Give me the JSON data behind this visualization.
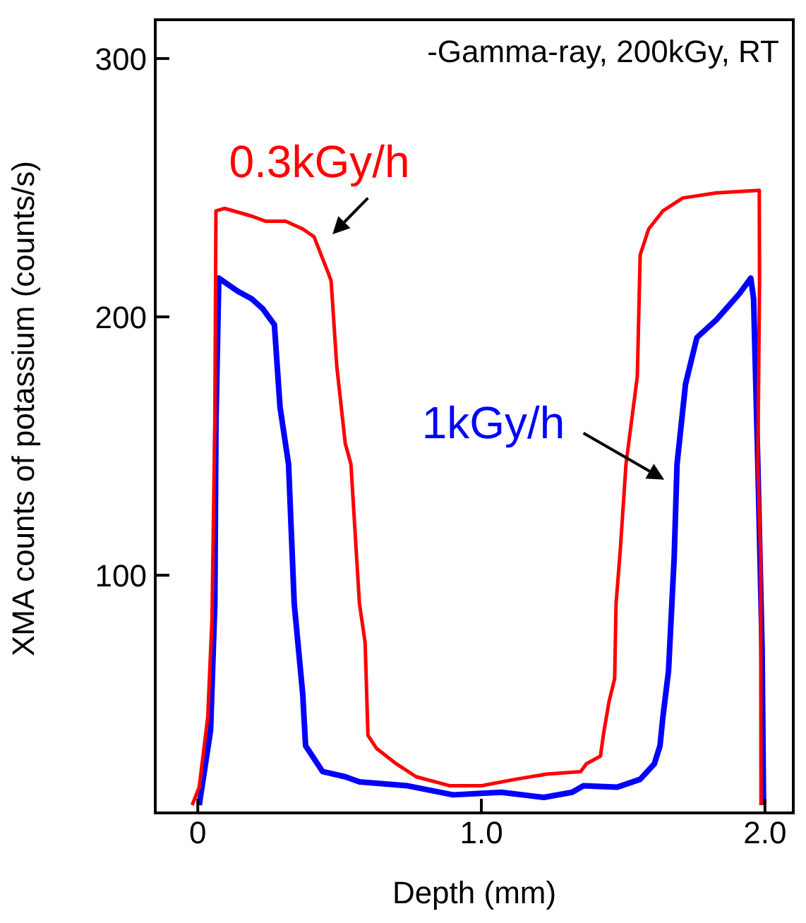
{
  "chart_data": {
    "type": "line",
    "xlabel": "Depth (mm)",
    "ylabel": "XMA counts of potassium (counts/s)",
    "annotations": [
      "-Gamma-ray, 200kGy, RT"
    ],
    "xlim": [
      -0.15,
      2.1
    ],
    "xticks": [
      0,
      {
        "value": 1,
        "label": "1.0"
      },
      {
        "value": 2,
        "label": "2.0"
      }
    ],
    "ylim": [
      8,
      315
    ],
    "yticks": [
      100,
      200,
      300
    ],
    "marker": "none",
    "line_style": "solid",
    "series": [
      {
        "name": "0.3kGy/h",
        "color": "#ff0000",
        "x": [
          -0.02,
          0.005,
          0.035,
          0.05,
          0.06,
          0.064,
          0.094,
          0.19,
          0.24,
          0.31,
          0.37,
          0.41,
          0.46,
          0.47,
          0.49,
          0.52,
          0.54,
          0.57,
          0.59,
          0.6,
          0.63,
          0.7,
          0.77,
          0.89,
          1.0,
          1.12,
          1.23,
          1.35,
          1.37,
          1.42,
          1.43,
          1.45,
          1.47,
          1.475,
          1.49,
          1.51,
          1.55,
          1.56,
          1.59,
          1.64,
          1.71,
          1.83,
          1.98,
          1.981,
          1.975,
          1.985,
          1.986
        ],
        "values": [
          11,
          18,
          45,
          83,
          159,
          241,
          242,
          239,
          237,
          237,
          234,
          231,
          217,
          214,
          181,
          151,
          143,
          89,
          74,
          38,
          33,
          27,
          22,
          18.5,
          18.5,
          21,
          23,
          24,
          27,
          30,
          38,
          51,
          60,
          89,
          110,
          143,
          177,
          224,
          234,
          241,
          246,
          248,
          249,
          214,
          143,
          107,
          11
        ]
      },
      {
        "name": "1kGy/h",
        "color": "#0000ff",
        "x": [
          0.005,
          0.045,
          0.06,
          0.064,
          0.074,
          0.14,
          0.19,
          0.23,
          0.27,
          0.28,
          0.29,
          0.32,
          0.34,
          0.37,
          0.38,
          0.44,
          0.52,
          0.57,
          0.74,
          0.9,
          1.07,
          1.22,
          1.32,
          1.36,
          1.48,
          1.56,
          1.61,
          1.63,
          1.64,
          1.66,
          1.68,
          1.69,
          1.72,
          1.76,
          1.83,
          1.91,
          1.95,
          1.96,
          1.975,
          1.99,
          1.995
        ],
        "values": [
          11,
          40,
          89,
          159,
          215,
          210,
          207,
          203,
          197,
          181,
          165,
          143,
          89,
          54,
          34,
          24,
          22,
          20,
          18.5,
          15,
          16,
          14,
          16,
          18.5,
          18,
          21,
          27,
          34,
          45,
          63,
          107,
          143,
          174,
          192,
          199,
          209,
          215,
          207,
          143,
          71,
          11
        ]
      }
    ]
  }
}
